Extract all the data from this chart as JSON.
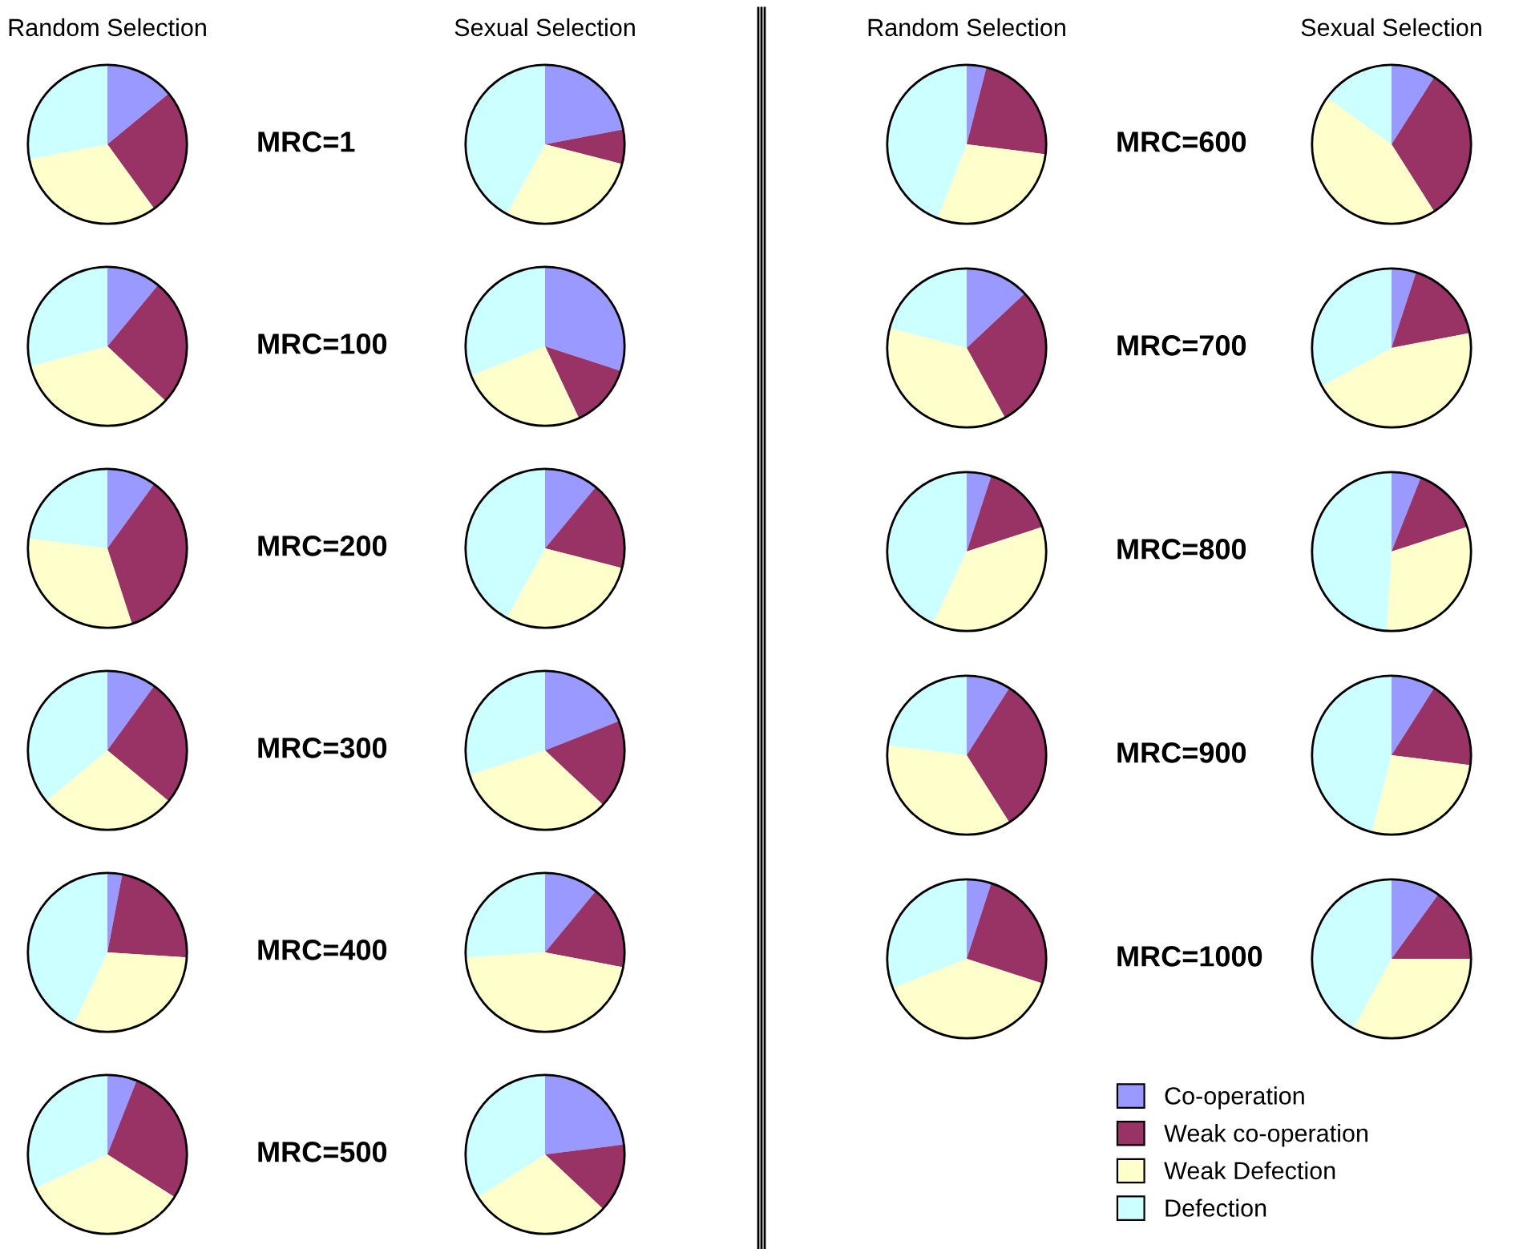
{
  "chart_data": [
    {
      "type": "pie",
      "title": "Random Selection",
      "annotations": [
        "MRC=1"
      ],
      "values": [
        14,
        26,
        32,
        28
      ],
      "colors": [
        "#9999ff",
        "#993366",
        "#ffffcc",
        "#ccffff"
      ]
    },
    {
      "type": "pie",
      "title": "Sexual Selection",
      "values": [
        22,
        7,
        29,
        42
      ],
      "colors": [
        "#9999ff",
        "#993366",
        "#ffffcc",
        "#ccffff"
      ]
    },
    {
      "type": "pie",
      "annotations": [
        "MRC=100"
      ],
      "values": [
        11,
        26,
        34,
        29
      ],
      "colors": [
        "#9999ff",
        "#993366",
        "#ffffcc",
        "#ccffff"
      ]
    },
    {
      "type": "pie",
      "values": [
        30,
        13,
        26,
        31
      ],
      "colors": [
        "#9999ff",
        "#993366",
        "#ffffcc",
        "#ccffff"
      ]
    },
    {
      "type": "pie",
      "annotations": [
        "MRC=200"
      ],
      "values": [
        10,
        35,
        32,
        23
      ],
      "colors": [
        "#9999ff",
        "#993366",
        "#ffffcc",
        "#ccffff"
      ]
    },
    {
      "type": "pie",
      "values": [
        11,
        18,
        29,
        42
      ],
      "colors": [
        "#9999ff",
        "#993366",
        "#ffffcc",
        "#ccffff"
      ]
    },
    {
      "type": "pie",
      "annotations": [
        "MRC=300"
      ],
      "values": [
        10,
        26,
        28,
        36
      ],
      "colors": [
        "#9999ff",
        "#993366",
        "#ffffcc",
        "#ccffff"
      ]
    },
    {
      "type": "pie",
      "values": [
        19,
        18,
        33,
        30
      ],
      "colors": [
        "#9999ff",
        "#993366",
        "#ffffcc",
        "#ccffff"
      ]
    },
    {
      "type": "pie",
      "annotations": [
        "MRC=400"
      ],
      "values": [
        3,
        23,
        31,
        43
      ],
      "colors": [
        "#9999ff",
        "#993366",
        "#ffffcc",
        "#ccffff"
      ]
    },
    {
      "type": "pie",
      "values": [
        11,
        17,
        46,
        26
      ],
      "colors": [
        "#9999ff",
        "#993366",
        "#ffffcc",
        "#ccffff"
      ]
    },
    {
      "type": "pie",
      "annotations": [
        "MRC=500"
      ],
      "values": [
        6,
        28,
        34,
        32
      ],
      "colors": [
        "#9999ff",
        "#993366",
        "#ffffcc",
        "#ccffff"
      ]
    },
    {
      "type": "pie",
      "values": [
        23,
        14,
        29,
        34
      ],
      "colors": [
        "#9999ff",
        "#993366",
        "#ffffcc",
        "#ccffff"
      ]
    },
    {
      "type": "pie",
      "title": "Random Selection",
      "annotations": [
        "MRC=600"
      ],
      "values": [
        4,
        23,
        29,
        44
      ],
      "colors": [
        "#9999ff",
        "#993366",
        "#ffffcc",
        "#ccffff"
      ]
    },
    {
      "type": "pie",
      "title": "Sexual Selection",
      "values": [
        9,
        32,
        44,
        15
      ],
      "colors": [
        "#9999ff",
        "#993366",
        "#ffffcc",
        "#ccffff"
      ]
    },
    {
      "type": "pie",
      "annotations": [
        "MRC=700"
      ],
      "values": [
        13,
        29,
        37,
        21
      ],
      "colors": [
        "#9999ff",
        "#993366",
        "#ffffcc",
        "#ccffff"
      ]
    },
    {
      "type": "pie",
      "values": [
        5,
        17,
        45,
        33
      ],
      "colors": [
        "#9999ff",
        "#993366",
        "#ffffcc",
        "#ccffff"
      ]
    },
    {
      "type": "pie",
      "annotations": [
        "MRC=800"
      ],
      "values": [
        5,
        15,
        37,
        43
      ],
      "colors": [
        "#9999ff",
        "#993366",
        "#ffffcc",
        "#ccffff"
      ]
    },
    {
      "type": "pie",
      "values": [
        6,
        14,
        31,
        49
      ],
      "colors": [
        "#9999ff",
        "#993366",
        "#ffffcc",
        "#ccffff"
      ]
    },
    {
      "type": "pie",
      "annotations": [
        "MRC=900"
      ],
      "values": [
        9,
        32,
        36,
        23
      ],
      "colors": [
        "#9999ff",
        "#993366",
        "#ffffcc",
        "#ccffff"
      ]
    },
    {
      "type": "pie",
      "values": [
        9,
        18,
        27,
        46
      ],
      "colors": [
        "#9999ff",
        "#993366",
        "#ffffcc",
        "#ccffff"
      ]
    },
    {
      "type": "pie",
      "annotations": [
        "MRC=1000"
      ],
      "values": [
        5,
        25,
        39,
        31
      ],
      "colors": [
        "#9999ff",
        "#993366",
        "#ffffcc",
        "#ccffff"
      ]
    },
    {
      "type": "pie",
      "legend": "bottom left",
      "categories": [
        "Co-operation",
        "Weak co-operation",
        "Weak Defection",
        "Defection"
      ],
      "values": [
        10,
        15,
        33,
        42
      ],
      "colors": [
        "#9999ff",
        "#993366",
        "#ffffcc",
        "#ccffff"
      ]
    }
  ]
}
